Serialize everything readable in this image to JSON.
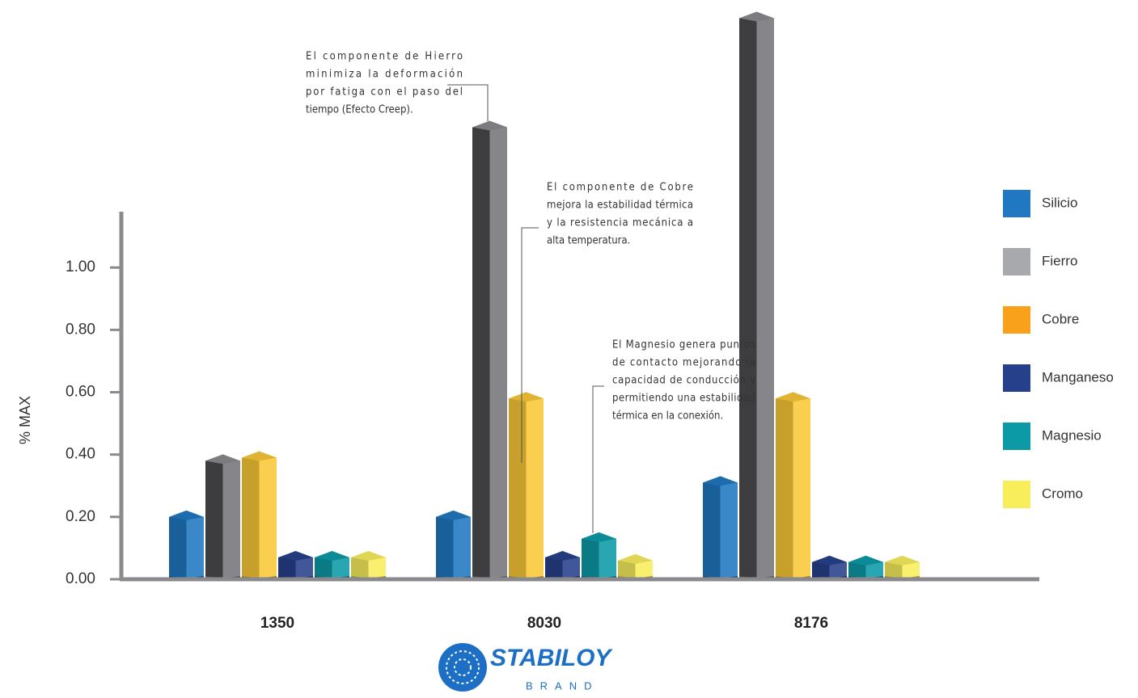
{
  "chart_data": {
    "type": "bar3d",
    "y_label": "% MAX",
    "categories": [
      "1350",
      "8030",
      "8176"
    ],
    "series": [
      {
        "name": "Silicio",
        "color": "#1f78c1",
        "values": [
          0.2,
          0.2,
          0.31
        ]
      },
      {
        "name": "Fierro",
        "color": "#a7a9ac",
        "values": [
          0.38,
          1.45,
          1.8
        ]
      },
      {
        "name": "Cobre",
        "color": "#f9a11b",
        "values": [
          0.39,
          0.58,
          0.58
        ]
      },
      {
        "name": "Manganeso",
        "color": "#27408b",
        "values": [
          0.07,
          0.07,
          0.055
        ]
      },
      {
        "name": "Magnesio",
        "color": "#0c9aa6",
        "values": [
          0.07,
          0.13,
          0.055
        ]
      },
      {
        "name": "Cromo",
        "color": "#f8ee5c",
        "values": [
          0.07,
          0.06,
          0.055
        ]
      }
    ],
    "ylim": [
      0,
      1.2
    ],
    "yticks": [
      {
        "value": 0,
        "label": "0.00"
      },
      {
        "value": 0.2,
        "label": "0.20"
      },
      {
        "value": 0.4,
        "label": "0.40"
      },
      {
        "value": 0.6,
        "label": "0.60"
      },
      {
        "value": 0.8,
        "label": "0.80"
      },
      {
        "value": 1,
        "label": "1.00"
      }
    ],
    "annotations": [
      {
        "lines": [
          "El componente de Hierro",
          "minimiza la deformación",
          "por fatiga con el paso del",
          "tiempo (Efecto Creep)."
        ]
      },
      {
        "lines": [
          "El componente de Cobre",
          "mejora la estabilidad térmica",
          "y la resistencia mecánica a",
          "alta temperatura."
        ]
      },
      {
        "lines": [
          "El Magnesio genera puntos",
          "de contacto mejorando la",
          "capacidad de conducción y",
          "permitiendo una estabilidad",
          "térmica en la conexión."
        ]
      }
    ]
  },
  "logo": {
    "name": "STABILOY",
    "sub": "BRAND"
  }
}
